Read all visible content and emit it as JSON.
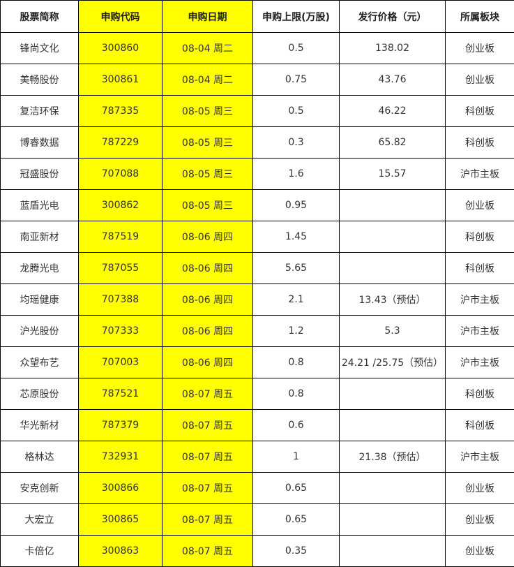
{
  "accent_color": "#ffff00",
  "headers": [
    "股票简称",
    "申购代码",
    "申购日期",
    "申购上限(万股)",
    "发行价格（元）",
    "所属板块"
  ],
  "rows": [
    [
      "锋尚文化",
      "300860",
      "08-04 周二",
      "0.5",
      "138.02",
      "创业板"
    ],
    [
      "美畅股份",
      "300861",
      "08-04 周二",
      "0.75",
      "43.76",
      "创业板"
    ],
    [
      "复洁环保",
      "787335",
      "08-05 周三",
      "0.5",
      "46.22",
      "科创板"
    ],
    [
      "博睿数据",
      "787229",
      "08-05 周三",
      "0.3",
      "65.82",
      "科创板"
    ],
    [
      "冠盛股份",
      "707088",
      "08-05 周三",
      "1.6",
      "15.57",
      "沪市主板"
    ],
    [
      "蓝盾光电",
      "300862",
      "08-05 周三",
      "0.95",
      "",
      "创业板"
    ],
    [
      "南亚新材",
      "787519",
      "08-06 周四",
      "1.45",
      "",
      "科创板"
    ],
    [
      "龙腾光电",
      "787055",
      "08-06 周四",
      "5.65",
      "",
      "科创板"
    ],
    [
      "均瑶健康",
      "707388",
      "08-06 周四",
      "2.1",
      "13.43（预估）",
      "沪市主板"
    ],
    [
      "沪光股份",
      "707333",
      "08-06 周四",
      "1.2",
      "5.3",
      "沪市主板"
    ],
    [
      "众望布艺",
      "707003",
      "08-06 周四",
      "0.8",
      "24.21 /25.75（预估）",
      "沪市主板"
    ],
    [
      "芯原股份",
      "787521",
      "08-07 周五",
      "0.8",
      "",
      "科创板"
    ],
    [
      "华光新材",
      "787379",
      "08-07 周五",
      "0.6",
      "",
      "科创板"
    ],
    [
      "格林达",
      "732931",
      "08-07 周五",
      "1",
      "21.38（预估）",
      "沪市主板"
    ],
    [
      "安克创新",
      "300866",
      "08-07 周五",
      "0.65",
      "",
      "创业板"
    ],
    [
      "大宏立",
      "300865",
      "08-07 周五",
      "0.65",
      "",
      "创业板"
    ],
    [
      "卡倍亿",
      "300863",
      "08-07 周五",
      "0.35",
      "",
      "创业板"
    ]
  ]
}
